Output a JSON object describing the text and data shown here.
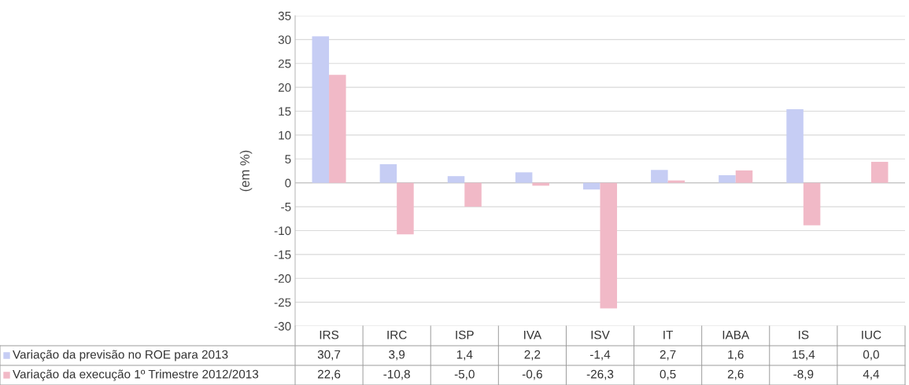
{
  "chart_data": {
    "type": "bar",
    "ylabel": "(em %)",
    "categories": [
      "IRS",
      "IRC",
      "ISP",
      "IVA",
      "ISV",
      "IT",
      "IABA",
      "IS",
      "IUC"
    ],
    "series": [
      {
        "name": "Variação da previsão no ROE para 2013",
        "color": "#c6cdf4",
        "values": [
          30.7,
          3.9,
          1.4,
          2.2,
          -1.4,
          2.7,
          1.6,
          15.4,
          0.0
        ],
        "value_labels": [
          "30,7",
          "3,9",
          "1,4",
          "2,2",
          "-1,4",
          "2,7",
          "1,6",
          "15,4",
          "0,0"
        ]
      },
      {
        "name": "Variação da execução 1º Trimestre 2012/2013",
        "color": "#f1b9c7",
        "values": [
          22.6,
          -10.8,
          -5.0,
          -0.6,
          -26.3,
          0.5,
          2.6,
          -8.9,
          4.4
        ],
        "value_labels": [
          "22,6",
          "-10,8",
          "-5,0",
          "-0,6",
          "-26,3",
          "0,5",
          "2,6",
          "-8,9",
          "4,4"
        ]
      }
    ],
    "ylim": [
      -30,
      35
    ],
    "yticks": [
      -30,
      -25,
      -20,
      -15,
      -10,
      -5,
      0,
      5,
      10,
      15,
      20,
      25,
      30,
      35
    ],
    "grid": "y",
    "legend": "bottom"
  }
}
